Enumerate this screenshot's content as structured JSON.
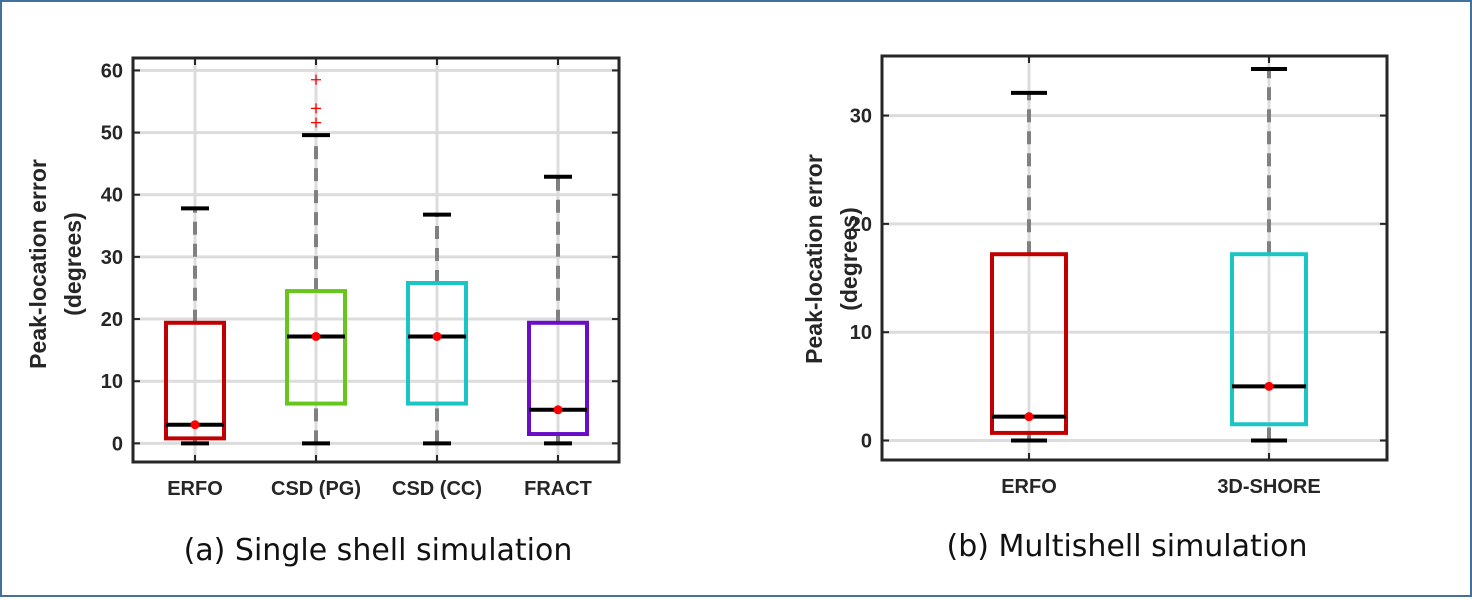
{
  "chart_data": [
    {
      "type": "box",
      "caption": "(a) Single shell simulation",
      "ylabel_line1": "Peak-location error",
      "ylabel_line2": "(degrees)",
      "ylim": [
        -3,
        62
      ],
      "yticks": [
        0,
        10,
        20,
        30,
        40,
        50,
        60
      ],
      "categories": [
        "ERFO",
        "CSD (PG)",
        "CSD (CC)",
        "FRACT"
      ],
      "boxes": [
        {
          "name": "ERFO",
          "color": "#c00000",
          "whisker_low": 0,
          "q1": 0.8,
          "median": 3.0,
          "q3": 19.4,
          "whisker_high": 37.8,
          "mean": 3.0,
          "outliers": []
        },
        {
          "name": "CSD (PG)",
          "color": "#66c61c",
          "whisker_low": 0,
          "q1": 6.4,
          "median": 17.2,
          "q3": 24.5,
          "whisker_high": 49.6,
          "mean": 17.2,
          "outliers": [
            51.6,
            53.9,
            58.5
          ]
        },
        {
          "name": "CSD (CC)",
          "color": "#1bc5c5",
          "whisker_low": 0,
          "q1": 6.4,
          "median": 17.2,
          "q3": 25.8,
          "whisker_high": 36.8,
          "mean": 17.2,
          "outliers": []
        },
        {
          "name": "FRACT",
          "color": "#6a0dc8",
          "whisker_low": 0,
          "q1": 1.5,
          "median": 5.4,
          "q3": 19.4,
          "whisker_high": 42.9,
          "mean": 5.4,
          "outliers": []
        }
      ]
    },
    {
      "type": "box",
      "caption": "(b) Multishell simulation",
      "ylabel_line1": "Peak-location error",
      "ylabel_line2": "(degrees)",
      "ylim": [
        -1.8,
        35.5
      ],
      "yticks": [
        0,
        10,
        20,
        30
      ],
      "categories": [
        "ERFO",
        "3D-SHORE"
      ],
      "boxes": [
        {
          "name": "ERFO",
          "color": "#c00000",
          "whisker_low": 0,
          "q1": 0.7,
          "median": 2.2,
          "q3": 17.2,
          "whisker_high": 32.1,
          "mean": 2.2,
          "outliers": []
        },
        {
          "name": "3D-SHORE",
          "color": "#1bc5c5",
          "whisker_low": 0,
          "q1": 1.5,
          "median": 5.0,
          "q3": 17.2,
          "whisker_high": 34.3,
          "mean": 5.0,
          "outliers": []
        }
      ]
    }
  ]
}
